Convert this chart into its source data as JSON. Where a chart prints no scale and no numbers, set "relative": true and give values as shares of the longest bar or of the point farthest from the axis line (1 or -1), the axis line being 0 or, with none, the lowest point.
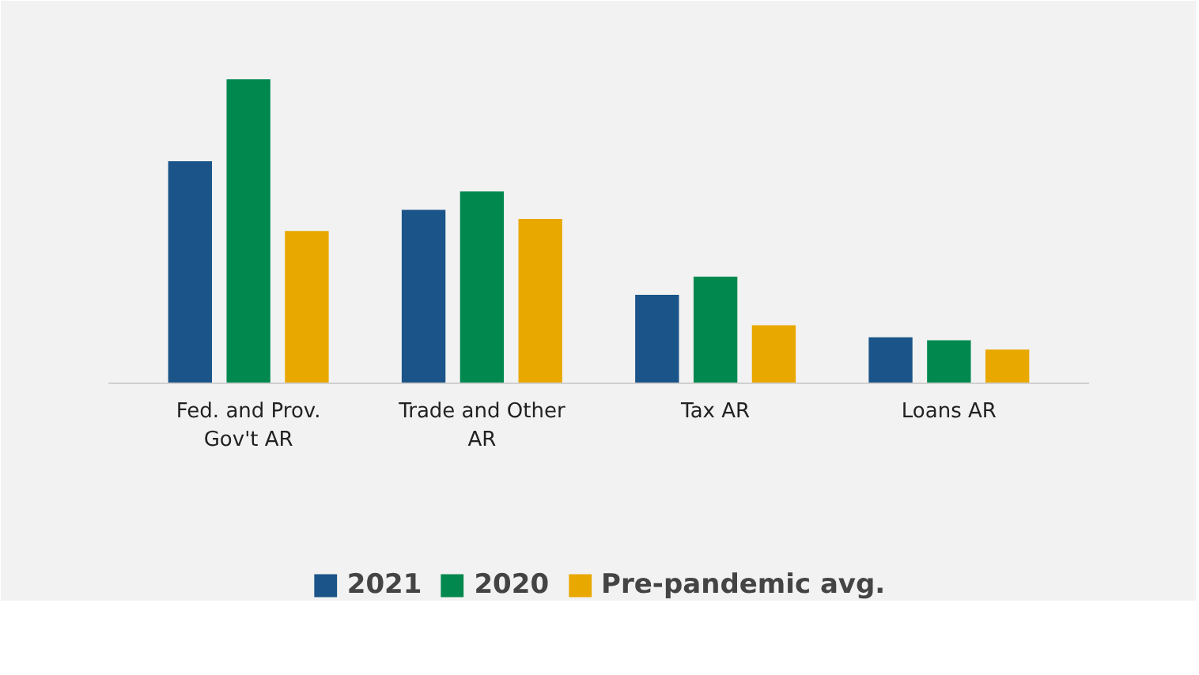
{
  "chart_data": {
    "type": "bar",
    "relative": true,
    "categories": [
      "Fed. and Prov. Gov't AR",
      "Trade and Other AR",
      "Tax AR",
      "Loans AR"
    ],
    "series": [
      {
        "name": "2021",
        "color": "#1a5488",
        "values": [
          0.73,
          0.57,
          0.29,
          0.15
        ]
      },
      {
        "name": "2020",
        "color": "#00884f",
        "values": [
          1,
          0.63,
          0.35,
          0.14
        ]
      },
      {
        "name": "Pre-pandemic avg.",
        "color": "#e8a800",
        "values": [
          0.5,
          0.54,
          0.19,
          0.11
        ]
      }
    ],
    "legend": "bottom"
  }
}
